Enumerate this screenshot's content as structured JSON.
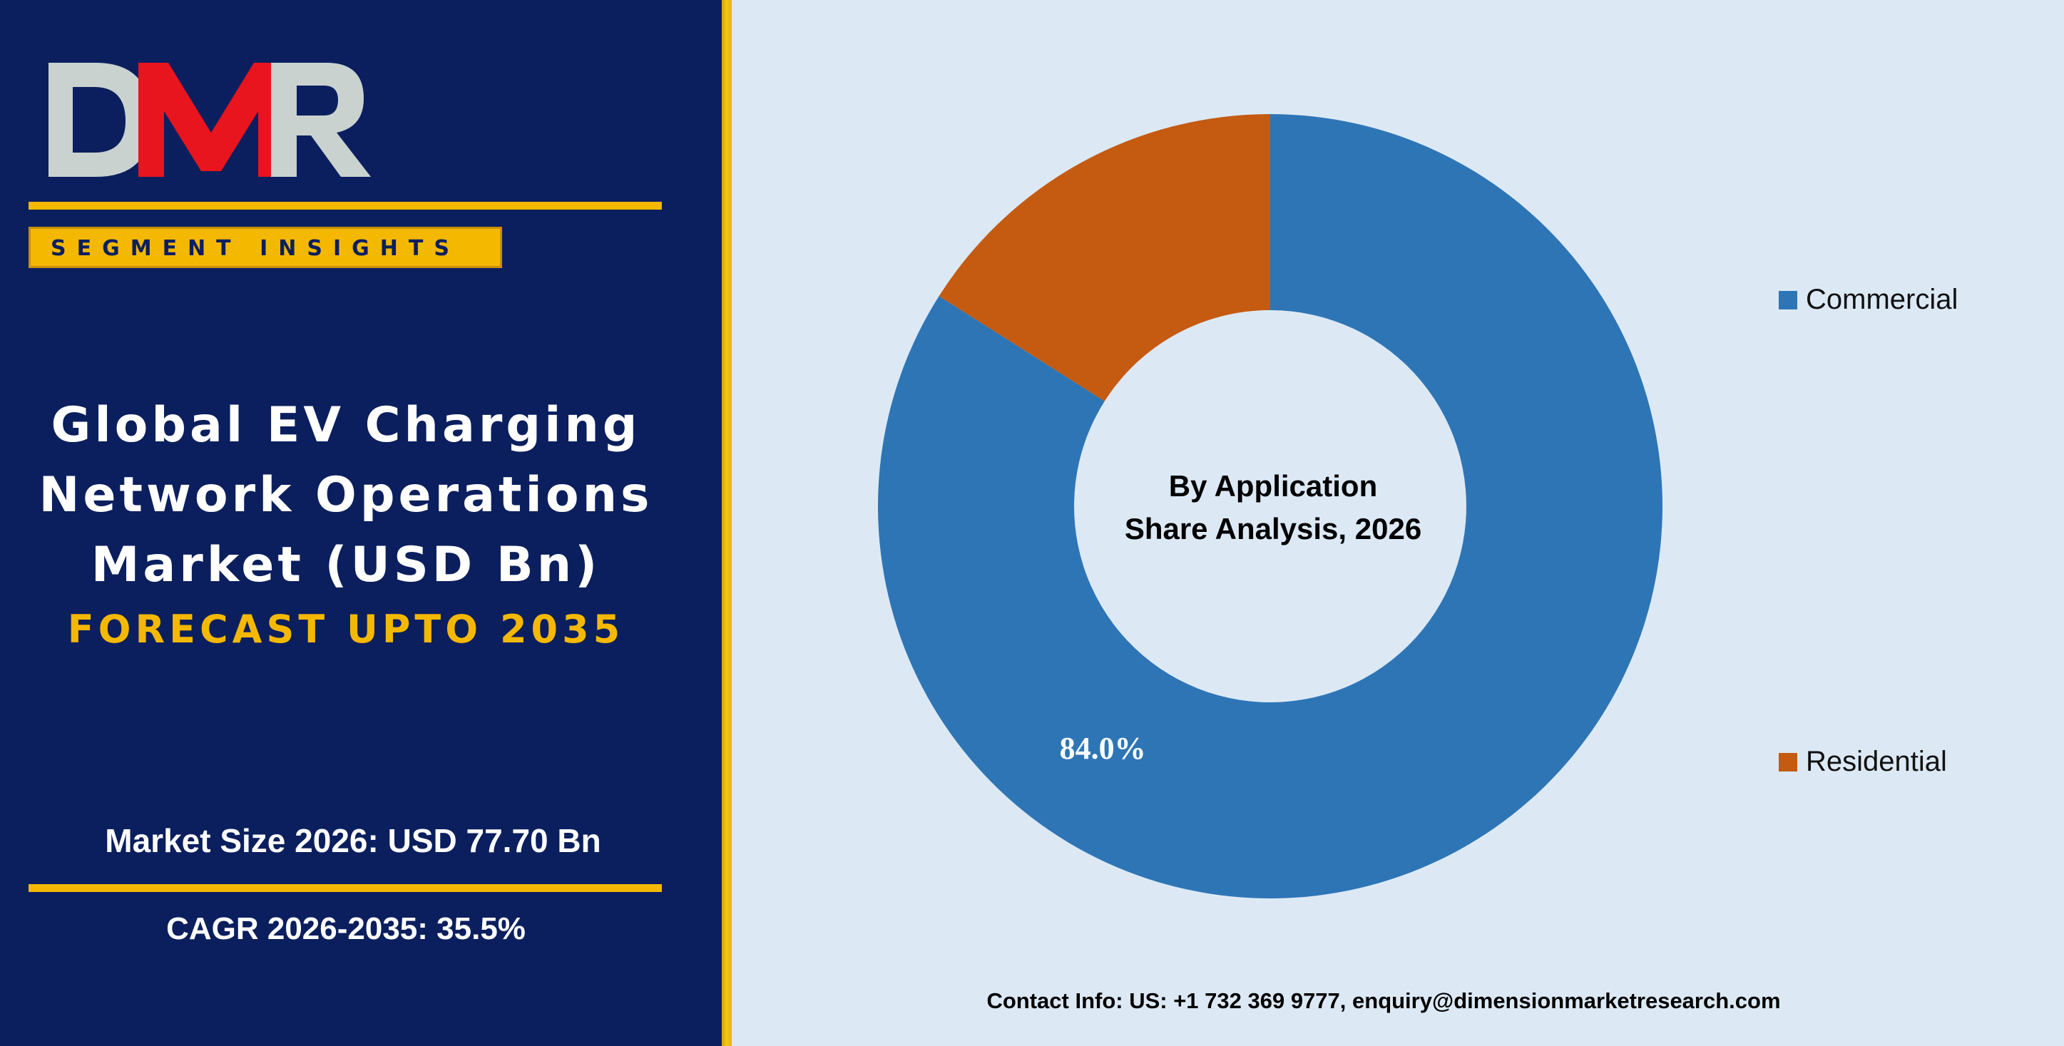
{
  "logo": {
    "text": "DMR",
    "colors": {
      "d": "#c9d2cf",
      "m": "#e8141e",
      "r": "#c9d2cf"
    }
  },
  "badge": {
    "label": "SEGMENT INSIGHTS"
  },
  "title": {
    "lines": [
      "Global EV Charging",
      "Network Operations",
      "Market (USD Bn)"
    ],
    "forecast": "FORECAST UPTO 2035"
  },
  "stats": {
    "market_size": "Market Size 2026: USD 77.70 Bn",
    "cagr": "CAGR 2026-2035: 35.5%"
  },
  "contact": "Contact Info: US: +1 732 369 9777, enquiry@dimensionmarketresearch.com",
  "colors": {
    "panel_navy": "#0b1f5e",
    "accent_gold": "#f5b800",
    "chart_background": "#dce9f5"
  },
  "chart_data": {
    "type": "pie",
    "donut": true,
    "center_text": [
      "By Application",
      "Share Analysis, 2026"
    ],
    "legend_position": "right",
    "slices": [
      {
        "name": "Commercial",
        "value": 84.0,
        "label": "84.0%",
        "color": "#2e75b6"
      },
      {
        "name": "Residential",
        "value": 16.0,
        "label": "",
        "color": "#c55a11"
      }
    ]
  }
}
